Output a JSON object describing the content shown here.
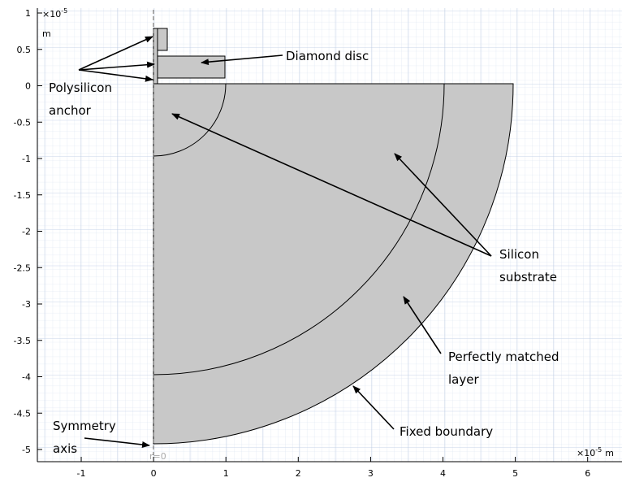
{
  "axes": {
    "x_ticks": [
      "-1",
      "0",
      "1",
      "2",
      "3",
      "4",
      "5",
      "6"
    ],
    "y_ticks": [
      "1",
      "0.5",
      "0",
      "-0.5",
      "-1",
      "-1.5",
      "-2",
      "-2.5",
      "-3",
      "-3.5",
      "-4",
      "-4.5",
      "-5"
    ],
    "scale": {
      "base": "×10",
      "exponent": "-5",
      "unit": "m"
    },
    "axis_marker": "r=0"
  },
  "annotations": [
    {
      "lines": [
        "Diamond disc"
      ]
    },
    {
      "lines": [
        "Polysilicon",
        "anchor"
      ]
    },
    {
      "lines": [
        "Silicon",
        "substrate"
      ]
    },
    {
      "lines": [
        "Perfectly matched",
        "layer"
      ]
    },
    {
      "lines": [
        "Fixed boundary"
      ]
    },
    {
      "lines": [
        "Symmetry",
        "axis"
      ]
    }
  ]
}
